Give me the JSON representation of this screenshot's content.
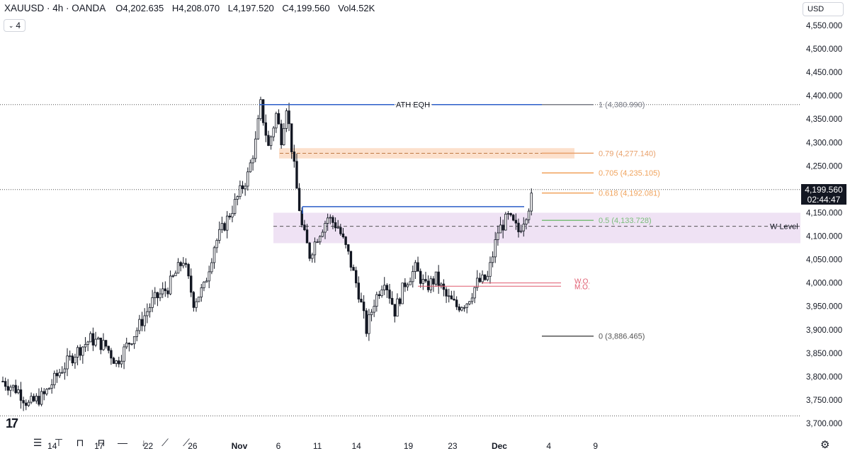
{
  "header": {
    "symbol": "XAUUSD · 4h · OANDA",
    "open": "O4,202.635",
    "high": "H4,208.070",
    "low": "L4,197.520",
    "close": "C4,199.560",
    "volume": "Vol4.52K",
    "indicator_count": "4"
  },
  "currency_button": "USD",
  "price_tag": {
    "price": "4,199.560",
    "countdown": "02:44:47"
  },
  "colors": {
    "up": "#ffffff",
    "down": "#131722",
    "blue_line": "#2b5ec8",
    "fib_1": "#787b86",
    "fib_079": "#e8a06a",
    "fib_0705": "#f0a35c",
    "fib_0618": "#f0a35c",
    "fib_05": "#7cbf7c",
    "fib_0": "#555555",
    "orange_zone": "rgba(245,165,110,0.35)",
    "purple_zone": "rgba(203,160,220,0.3)",
    "wo": "#e05a6e"
  },
  "chart_data": {
    "type": "candlestick",
    "y_axis": {
      "min": 3690,
      "max": 4570,
      "ticks": [
        "4,550.000",
        "4,500.000",
        "4,450.000",
        "4,400.000",
        "4,350.000",
        "4,300.000",
        "4,250.000",
        "4,200.000",
        "4,150.000",
        "4,100.000",
        "4,050.000",
        "4,000.000",
        "3,950.000",
        "3,900.000",
        "3,850.000",
        "3,800.000",
        "3,750.000",
        "3,700.000"
      ],
      "tick_values": [
        4550,
        4500,
        4450,
        4400,
        4350,
        4300,
        4250,
        4200,
        4150,
        4100,
        4050,
        4000,
        3950,
        3900,
        3850,
        3800,
        3750,
        3700
      ]
    },
    "x_axis": {
      "labels": [
        "14",
        "17",
        "22",
        "26",
        "Nov",
        "6",
        "11",
        "14",
        "19",
        "23",
        "Dec",
        "4",
        "9"
      ],
      "label_index": [
        19,
        37,
        56,
        73,
        91,
        106,
        121,
        136,
        156,
        173,
        191,
        210,
        228
      ]
    },
    "candles_ohlc": [],
    "annotations": {
      "ath_eqh": {
        "label": "ATH EQH",
        "price": 4380.99,
        "from_index": 36,
        "to_index": 92
      },
      "fib_levels": [
        {
          "label": "1 (4,380.990)",
          "price": 4380.99
        },
        {
          "label": "0.79 (4,277.140)",
          "price": 4277.14
        },
        {
          "label": "0.705 (4,235.105)",
          "price": 4235.105
        },
        {
          "label": "0.618 (4,192.081)",
          "price": 4192.081
        },
        {
          "label": "0.5 (4,133.728)",
          "price": 4133.728
        },
        {
          "label": "0 (3,886.465)",
          "price": 3886.465
        }
      ],
      "w_level": {
        "label": "W Level",
        "price": 4121
      },
      "wo": {
        "label": "W.O.",
        "price": 4000
      },
      "mo": {
        "label": "M.O.",
        "price": 3993
      },
      "range_high": {
        "price": 4163
      },
      "orange_zone": {
        "high": 4288,
        "low": 4266
      },
      "purple_zone": {
        "high": 4150,
        "low": 4085
      },
      "current_price": 4199.56,
      "bottom_dotted": 3716
    }
  },
  "toolbar_icons": [
    "range-icon",
    "compare-icon",
    "replay-icon",
    "bar-style-icon",
    "minus-icon",
    "down-arrow-icon",
    "trend-icon",
    "zoom-icon"
  ]
}
